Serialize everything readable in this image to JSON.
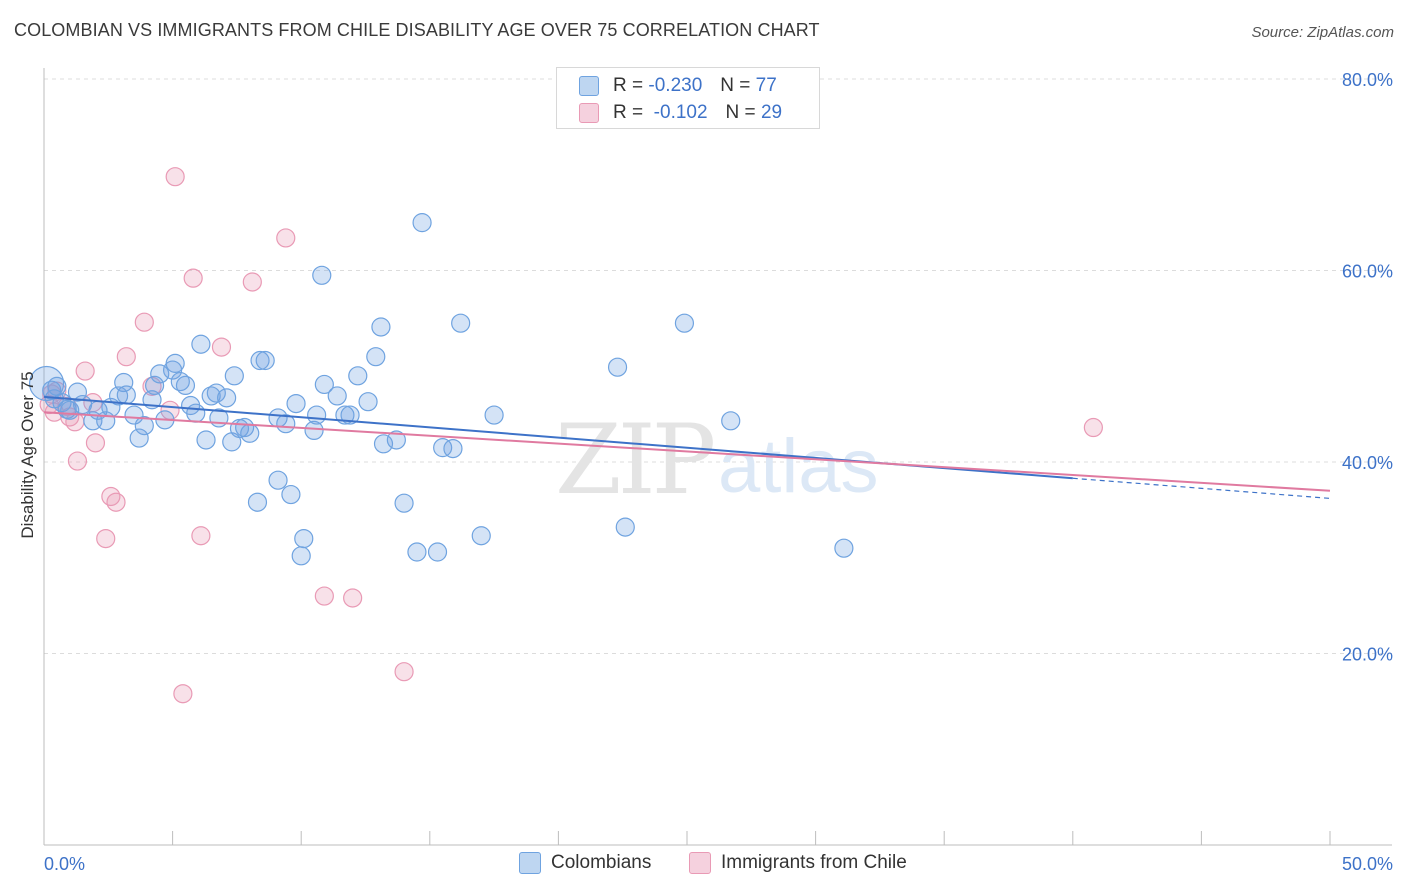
{
  "header": {
    "title": "COLOMBIAN VS IMMIGRANTS FROM CHILE DISABILITY AGE OVER 75 CORRELATION CHART",
    "source": "Source: ZipAtlas.com"
  },
  "watermark": {
    "zip": "ZIP",
    "atlas": "atlas"
  },
  "legend": {
    "r_label": "R =",
    "n_label": "N =",
    "rows": [
      {
        "r": "-0.230",
        "n": "77",
        "color": "#6fa3e0"
      },
      {
        "r": "-0.102",
        "n": "29",
        "color": "#e99ab5"
      }
    ]
  },
  "chart_data": {
    "type": "scatter",
    "title": "COLOMBIAN VS IMMIGRANTS FROM CHILE DISABILITY AGE OVER 75 CORRELATION CHART",
    "xlabel": "",
    "ylabel": "Disability Age Over 75",
    "xlim": [
      0,
      50
    ],
    "ylim": [
      0,
      80
    ],
    "x_ticks_labeled": [
      "0.0%",
      "50.0%"
    ],
    "y_ticks": [
      {
        "value": 20,
        "label": "20.0%"
      },
      {
        "value": 40,
        "label": "40.0%"
      },
      {
        "value": 60,
        "label": "60.0%"
      },
      {
        "value": 80,
        "label": "80.0%"
      }
    ],
    "grid": "horizontal dashed",
    "legend_position": "bottom",
    "series": [
      {
        "name": "Colombians",
        "color": "#6fa3e0",
        "fill": "rgba(111,163,224,0.3)",
        "trend": {
          "x": [
            0,
            40
          ],
          "y": [
            46.8,
            38.3
          ],
          "dashed_to_x": 50,
          "dashed_to_y": 36.2
        },
        "points": [
          [
            0.1,
            48.2
          ],
          [
            0.3,
            47.5
          ],
          [
            0.4,
            46.6
          ],
          [
            0.5,
            47.9
          ],
          [
            0.7,
            46.2
          ],
          [
            0.9,
            45.5
          ],
          [
            1.3,
            47.3
          ],
          [
            1.5,
            46.0
          ],
          [
            1.9,
            44.3
          ],
          [
            2.1,
            45.4
          ],
          [
            2.4,
            44.3
          ],
          [
            2.6,
            45.7
          ],
          [
            2.9,
            46.9
          ],
          [
            3.1,
            48.3
          ],
          [
            3.2,
            47.0
          ],
          [
            3.5,
            44.9
          ],
          [
            3.7,
            42.5
          ],
          [
            3.9,
            43.8
          ],
          [
            4.2,
            46.5
          ],
          [
            4.3,
            48.0
          ],
          [
            4.5,
            49.2
          ],
          [
            4.7,
            44.4
          ],
          [
            5.0,
            49.6
          ],
          [
            5.1,
            50.3
          ],
          [
            5.3,
            48.4
          ],
          [
            5.5,
            48.0
          ],
          [
            5.7,
            45.9
          ],
          [
            5.9,
            45.1
          ],
          [
            6.1,
            52.3
          ],
          [
            6.3,
            42.3
          ],
          [
            6.5,
            46.9
          ],
          [
            6.7,
            47.2
          ],
          [
            6.8,
            44.6
          ],
          [
            7.1,
            46.7
          ],
          [
            7.3,
            42.1
          ],
          [
            7.4,
            49.0
          ],
          [
            7.6,
            43.5
          ],
          [
            7.8,
            43.6
          ],
          [
            8.0,
            43.0
          ],
          [
            8.3,
            35.8
          ],
          [
            8.4,
            50.6
          ],
          [
            8.6,
            50.6
          ],
          [
            9.1,
            38.1
          ],
          [
            9.1,
            44.6
          ],
          [
            9.4,
            44.0
          ],
          [
            9.6,
            36.6
          ],
          [
            9.8,
            46.1
          ],
          [
            10.0,
            30.2
          ],
          [
            10.1,
            32.0
          ],
          [
            10.5,
            43.3
          ],
          [
            10.6,
            44.9
          ],
          [
            10.8,
            59.5
          ],
          [
            10.9,
            48.1
          ],
          [
            11.4,
            46.9
          ],
          [
            11.7,
            44.9
          ],
          [
            11.9,
            44.9
          ],
          [
            12.2,
            49.0
          ],
          [
            12.6,
            46.3
          ],
          [
            12.9,
            51.0
          ],
          [
            13.1,
            54.1
          ],
          [
            13.2,
            41.9
          ],
          [
            13.7,
            42.3
          ],
          [
            14.0,
            35.7
          ],
          [
            14.5,
            30.6
          ],
          [
            14.7,
            65.0
          ],
          [
            15.3,
            30.6
          ],
          [
            15.5,
            41.5
          ],
          [
            15.9,
            41.4
          ],
          [
            16.2,
            54.5
          ],
          [
            17.0,
            32.3
          ],
          [
            17.5,
            44.9
          ],
          [
            22.3,
            49.9
          ],
          [
            22.6,
            33.2
          ],
          [
            24.9,
            54.5
          ],
          [
            26.7,
            44.3
          ],
          [
            31.1,
            31.0
          ],
          [
            1.0,
            45.4
          ]
        ]
      },
      {
        "name": "Immigrants from Chile",
        "color": "#e99ab5",
        "fill": "rgba(233,154,181,0.3)",
        "trend": {
          "x": [
            0,
            50
          ],
          "y": [
            45.2,
            37.0
          ]
        },
        "points": [
          [
            0.2,
            46.0
          ],
          [
            0.4,
            45.2
          ],
          [
            0.5,
            47.4
          ],
          [
            0.9,
            45.8
          ],
          [
            1.0,
            44.7
          ],
          [
            1.2,
            44.2
          ],
          [
            1.3,
            40.1
          ],
          [
            1.6,
            49.5
          ],
          [
            1.9,
            46.2
          ],
          [
            2.0,
            42.0
          ],
          [
            2.4,
            32.0
          ],
          [
            2.6,
            36.4
          ],
          [
            2.8,
            35.8
          ],
          [
            3.2,
            51.0
          ],
          [
            3.9,
            54.6
          ],
          [
            4.2,
            47.9
          ],
          [
            4.9,
            45.4
          ],
          [
            5.1,
            69.8
          ],
          [
            5.4,
            15.8
          ],
          [
            5.8,
            59.2
          ],
          [
            6.1,
            32.3
          ],
          [
            6.9,
            52.0
          ],
          [
            8.1,
            58.8
          ],
          [
            9.4,
            63.4
          ],
          [
            10.9,
            26.0
          ],
          [
            12.0,
            25.8
          ],
          [
            14.0,
            18.1
          ],
          [
            40.8,
            43.6
          ],
          [
            0.3,
            47.1
          ]
        ]
      }
    ]
  }
}
